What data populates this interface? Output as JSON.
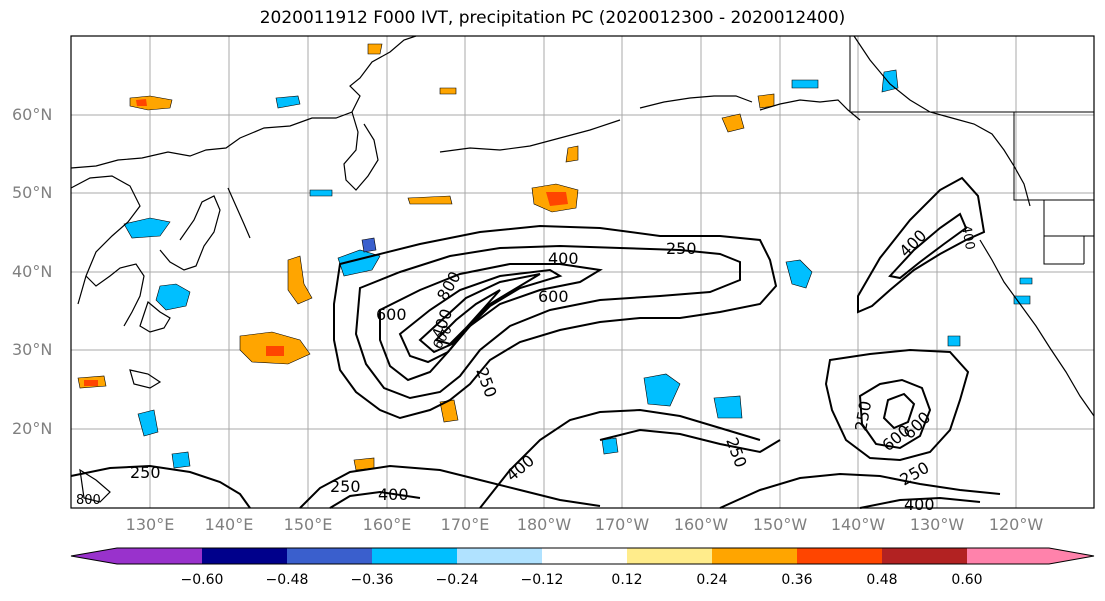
{
  "title": "2020011912 F000 IVT, precipitation PC (2020012300 - 2020012400)",
  "map": {
    "lat_labels": [
      "60°N",
      "50°N",
      "40°N",
      "30°N",
      "20°N"
    ],
    "lon_labels": [
      "130°E",
      "140°E",
      "150°E",
      "160°E",
      "170°E",
      "180°W",
      "170°W",
      "160°W",
      "150°W",
      "140°W",
      "130°W",
      "120°W"
    ],
    "contour_labels": [
      "250",
      "400",
      "600",
      "800",
      "250",
      "600",
      "400",
      "250",
      "400",
      "250",
      "400",
      "250",
      "400",
      "600",
      "250",
      "600",
      "800",
      "600",
      "250",
      "400",
      "400"
    ]
  },
  "colorbar": {
    "ticks": [
      "−0.60",
      "−0.48",
      "−0.36",
      "−0.24",
      "−0.12",
      "0.12",
      "0.24",
      "0.36",
      "0.48",
      "0.60"
    ],
    "colors": [
      "#9932cc",
      "#00008b",
      "#3a5fcd",
      "#00bfff",
      "#b0e2ff",
      "#ffffff",
      "#ffec8b",
      "#ffa500",
      "#ff4500",
      "#b22222",
      "#ff82ab"
    ]
  }
}
